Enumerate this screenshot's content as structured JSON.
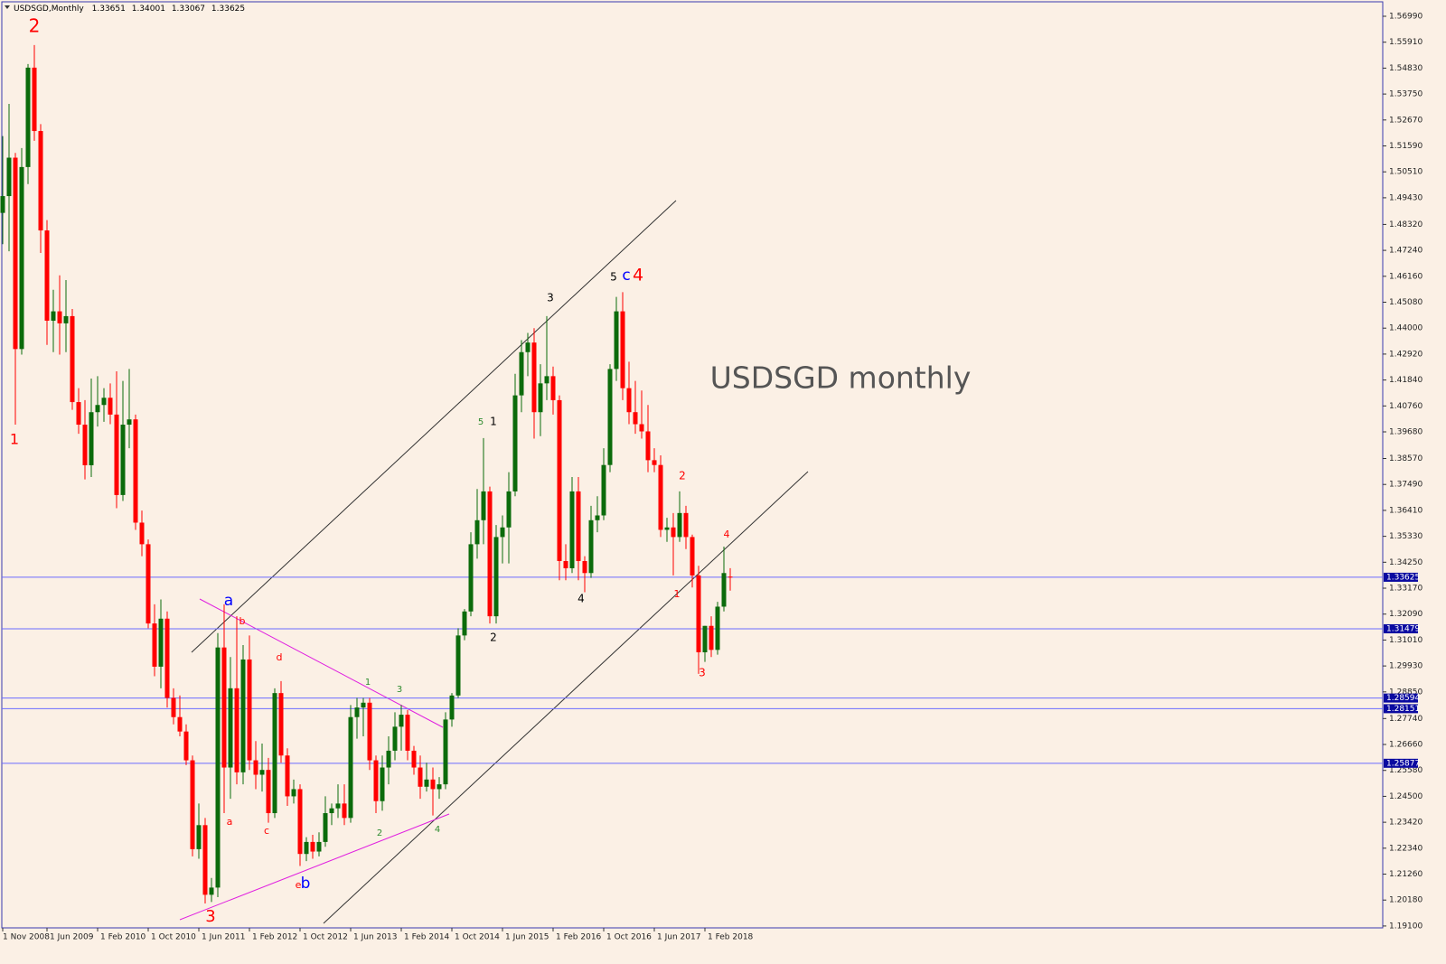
{
  "chart_data": {
    "type": "candlestick",
    "title": "USDSGD,Monthly",
    "up_color": "#0b6b0b",
    "down_color": "#ff0000",
    "hline_color": "#6b6bff",
    "hline_label_color": "#0a0aa0",
    "grid": false,
    "categories": [
      "1 Nov 2008",
      null,
      null,
      null,
      null,
      null,
      null,
      "1 Jun 2009",
      null,
      null,
      null,
      null,
      null,
      null,
      null,
      "1 Feb 2010",
      null,
      null,
      null,
      null,
      null,
      null,
      null,
      "1 Oct 2010",
      null,
      null,
      null,
      null,
      null,
      null,
      null,
      "1 Jun 2011",
      null,
      null,
      null,
      null,
      null,
      null,
      null,
      "1 Feb 2012",
      null,
      null,
      null,
      null,
      null,
      null,
      null,
      "1 Oct 2012",
      null,
      null,
      null,
      null,
      null,
      null,
      null,
      "1 Jun 2013",
      null,
      null,
      null,
      null,
      null,
      null,
      null,
      "1 Feb 2014",
      null,
      null,
      null,
      null,
      null,
      null,
      null,
      "1 Oct 2014",
      null,
      null,
      null,
      null,
      null,
      null,
      null,
      "1 Jun 2015",
      null,
      null,
      null,
      null,
      null,
      null,
      null,
      "1 Feb 2016",
      null,
      null,
      null,
      null,
      null,
      null,
      null,
      "1 Oct 2016",
      null,
      null,
      null,
      null,
      null,
      null,
      null,
      "1 Jun 2017",
      null,
      null,
      null,
      null,
      null,
      null,
      null,
      "1 Feb 2018",
      null,
      null,
      null,
      null
    ],
    "open": [
      1.488,
      1.495,
      1.511,
      1.4313,
      1.5071,
      1.5485,
      1.5221,
      1.4807,
      1.4431,
      1.447,
      1.442,
      1.445,
      1.4092,
      1.3998,
      1.3829,
      1.405,
      1.408,
      1.411,
      1.404,
      1.3705,
      1.3998,
      1.402,
      1.359,
      1.35,
      1.317,
      1.299,
      1.319,
      1.286,
      1.278,
      1.272,
      1.26,
      1.223,
      1.233,
      1.204,
      1.207,
      1.307,
      1.257,
      1.29,
      1.255,
      1.302,
      1.26,
      1.254,
      1.256,
      1.238,
      1.288,
      1.262,
      1.245,
      1.248,
      1.221,
      1.226,
      1.222,
      1.226,
      1.238,
      1.24,
      1.242,
      1.236,
      1.278,
      1.282,
      1.284,
      1.26,
      1.243,
      1.257,
      1.264,
      1.274,
      1.279,
      1.264,
      1.257,
      1.249,
      1.252,
      1.248,
      1.25,
      1.277,
      1.287,
      1.312,
      1.322,
      1.35,
      1.36,
      1.372,
      1.32,
      1.353,
      1.357,
      1.372,
      1.412,
      1.43,
      1.434,
      1.405,
      1.417,
      1.42,
      1.41,
      1.343,
      1.34,
      1.372,
      1.343,
      1.338,
      1.36,
      1.362,
      1.383,
      1.423,
      1.447,
      1.415,
      1.405,
      1.4,
      1.397,
      1.385,
      1.383,
      1.356,
      1.357,
      1.353,
      1.363,
      1.353,
      1.337,
      1.305,
      1.316,
      1.306,
      1.324,
      1.33651
    ],
    "high": [
      1.52,
      1.5334,
      1.513,
      1.515,
      1.55,
      1.5579,
      1.525,
      1.485,
      1.456,
      1.462,
      1.46,
      1.448,
      1.415,
      1.41,
      1.419,
      1.42,
      1.415,
      1.417,
      1.422,
      1.418,
      1.423,
      1.404,
      1.364,
      1.352,
      1.325,
      1.327,
      1.322,
      1.29,
      1.287,
      1.275,
      1.262,
      1.242,
      1.236,
      1.211,
      1.313,
      1.325,
      1.303,
      1.32,
      1.308,
      1.312,
      1.268,
      1.267,
      1.261,
      1.29,
      1.293,
      1.265,
      1.252,
      1.25,
      1.228,
      1.229,
      1.23,
      1.245,
      1.242,
      1.25,
      1.25,
      1.283,
      1.286,
      1.286,
      1.286,
      1.262,
      1.262,
      1.27,
      1.28,
      1.283,
      1.281,
      1.266,
      1.262,
      1.259,
      1.257,
      1.253,
      1.28,
      1.288,
      1.315,
      1.323,
      1.355,
      1.373,
      1.3942,
      1.374,
      1.358,
      1.362,
      1.38,
      1.421,
      1.435,
      1.438,
      1.44,
      1.425,
      1.445,
      1.424,
      1.412,
      1.35,
      1.378,
      1.378,
      1.345,
      1.366,
      1.37,
      1.39,
      1.425,
      1.453,
      1.455,
      1.426,
      1.418,
      1.414,
      1.408,
      1.39,
      1.387,
      1.361,
      1.363,
      1.372,
      1.366,
      1.354,
      1.341,
      1.316,
      1.32,
      1.326,
      1.349,
      1.34001
    ],
    "low": [
      1.475,
      1.472,
      1.3998,
      1.429,
      1.5,
      1.518,
      1.4713,
      1.433,
      1.43,
      1.429,
      1.43,
      1.406,
      1.396,
      1.377,
      1.378,
      1.399,
      1.401,
      1.4,
      1.365,
      1.368,
      1.39,
      1.356,
      1.345,
      1.315,
      1.295,
      1.29,
      1.282,
      1.275,
      1.27,
      1.258,
      1.22,
      1.219,
      1.2004,
      1.201,
      1.203,
      1.238,
      1.244,
      1.25,
      1.25,
      1.256,
      1.248,
      1.247,
      1.234,
      1.236,
      1.259,
      1.241,
      1.242,
      1.216,
      1.218,
      1.219,
      1.22,
      1.224,
      1.233,
      1.236,
      1.233,
      1.234,
      1.269,
      1.27,
      1.256,
      1.238,
      1.239,
      1.25,
      1.26,
      1.264,
      1.26,
      1.254,
      1.244,
      1.247,
      1.237,
      1.244,
      1.248,
      1.274,
      1.286,
      1.31,
      1.32,
      1.344,
      1.35,
      1.317,
      1.317,
      1.342,
      1.342,
      1.37,
      1.405,
      1.42,
      1.394,
      1.395,
      1.41,
      1.404,
      1.335,
      1.335,
      1.338,
      1.335,
      1.33,
      1.336,
      1.355,
      1.36,
      1.38,
      1.418,
      1.41,
      1.4,
      1.396,
      1.394,
      1.38,
      1.38,
      1.353,
      1.351,
      1.337,
      1.351,
      1.348,
      1.332,
      1.296,
      1.301,
      1.303,
      1.304,
      1.322,
      1.33067
    ],
    "close": [
      1.495,
      1.511,
      1.4313,
      1.5071,
      1.5485,
      1.5221,
      1.4807,
      1.4431,
      1.447,
      1.442,
      1.445,
      1.4092,
      1.3998,
      1.3829,
      1.405,
      1.408,
      1.411,
      1.404,
      1.3705,
      1.3998,
      1.402,
      1.359,
      1.35,
      1.317,
      1.299,
      1.319,
      1.286,
      1.278,
      1.272,
      1.26,
      1.223,
      1.233,
      1.204,
      1.207,
      1.307,
      1.257,
      1.29,
      1.255,
      1.302,
      1.26,
      1.254,
      1.256,
      1.238,
      1.288,
      1.262,
      1.245,
      1.248,
      1.221,
      1.226,
      1.222,
      1.226,
      1.238,
      1.24,
      1.242,
      1.236,
      1.278,
      1.282,
      1.284,
      1.26,
      1.243,
      1.257,
      1.264,
      1.274,
      1.279,
      1.264,
      1.257,
      1.249,
      1.252,
      1.248,
      1.25,
      1.277,
      1.287,
      1.312,
      1.322,
      1.35,
      1.36,
      1.372,
      1.32,
      1.353,
      1.357,
      1.372,
      1.412,
      1.43,
      1.434,
      1.405,
      1.417,
      1.42,
      1.41,
      1.343,
      1.34,
      1.372,
      1.343,
      1.338,
      1.36,
      1.362,
      1.383,
      1.423,
      1.447,
      1.415,
      1.405,
      1.4,
      1.397,
      1.385,
      1.383,
      1.356,
      1.357,
      1.353,
      1.363,
      1.353,
      1.337,
      1.305,
      1.316,
      1.306,
      1.324,
      1.338,
      1.33625
    ],
    "ylim": [
      1.19022,
      1.57592
    ],
    "yticks": [
      {
        "value": 1.5699,
        "label": "1.56990"
      },
      {
        "value": 1.5591,
        "label": "1.55910"
      },
      {
        "value": 1.5483,
        "label": "1.54830"
      },
      {
        "value": 1.5375,
        "label": "1.53750"
      },
      {
        "value": 1.5267,
        "label": "1.52670"
      },
      {
        "value": 1.5159,
        "label": "1.51590"
      },
      {
        "value": 1.5051,
        "label": "1.50510"
      },
      {
        "value": 1.4943,
        "label": "1.49430"
      },
      {
        "value": 1.4832,
        "label": "1.48320"
      },
      {
        "value": 1.4724,
        "label": "1.47240"
      },
      {
        "value": 1.4616,
        "label": "1.46160"
      },
      {
        "value": 1.4508,
        "label": "1.45080"
      },
      {
        "value": 1.44,
        "label": "1.44000"
      },
      {
        "value": 1.4292,
        "label": "1.42920"
      },
      {
        "value": 1.4184,
        "label": "1.41840"
      },
      {
        "value": 1.4076,
        "label": "1.40760"
      },
      {
        "value": 1.3968,
        "label": "1.39680"
      },
      {
        "value": 1.3857,
        "label": "1.38570"
      },
      {
        "value": 1.3749,
        "label": "1.37490"
      },
      {
        "value": 1.3641,
        "label": "1.36410"
      },
      {
        "value": 1.3533,
        "label": "1.35330"
      },
      {
        "value": 1.3425,
        "label": "1.34250"
      },
      {
        "value": 1.3317,
        "label": "1.33170"
      },
      {
        "value": 1.3209,
        "label": "1.32090"
      },
      {
        "value": 1.3101,
        "label": "1.31010"
      },
      {
        "value": 1.2993,
        "label": "1.29930"
      },
      {
        "value": 1.2885,
        "label": "1.28850"
      },
      {
        "value": 1.2774,
        "label": "1.27740"
      },
      {
        "value": 1.2666,
        "label": "1.26660"
      },
      {
        "value": 1.2558,
        "label": "1.25580"
      },
      {
        "value": 1.245,
        "label": "1.24500"
      },
      {
        "value": 1.2342,
        "label": "1.23420"
      },
      {
        "value": 1.2234,
        "label": "1.22340"
      },
      {
        "value": 1.2126,
        "label": "1.21260"
      },
      {
        "value": 1.2018,
        "label": "1.20180"
      },
      {
        "value": 1.191,
        "label": "1.19100"
      }
    ],
    "hlines": [
      1.33625,
      1.31479,
      1.28594,
      1.28151,
      1.25877
    ],
    "annotations": [
      {
        "text": "2",
        "color": "#ff0000"
      },
      {
        "text": "1",
        "color": "#ff0000"
      },
      {
        "text": "3",
        "color": "#ff0000"
      },
      {
        "text": "a",
        "color": "#0000ff"
      },
      {
        "text": "b",
        "color": "#ff0000"
      },
      {
        "text": "d",
        "color": "#ff0000"
      },
      {
        "text": "a",
        "color": "#ff0000"
      },
      {
        "text": "c",
        "color": "#ff0000"
      },
      {
        "text": "e",
        "color": "#ff0000"
      },
      {
        "text": "b",
        "color": "#0000ff"
      },
      {
        "text": "1",
        "color": "#2e8b2e"
      },
      {
        "text": "3",
        "color": "#2e8b2e"
      },
      {
        "text": "2",
        "color": "#2e8b2e"
      },
      {
        "text": "4",
        "color": "#2e8b2e"
      },
      {
        "text": "5",
        "color": "#2e8b2e"
      },
      {
        "text": "1",
        "color": "#000000"
      },
      {
        "text": "2",
        "color": "#000000"
      },
      {
        "text": "3",
        "color": "#000000"
      },
      {
        "text": "4",
        "color": "#000000"
      },
      {
        "text": "5",
        "color": "#000000"
      },
      {
        "text": "c",
        "color": "#0000ff"
      },
      {
        "text": "4",
        "color": "#ff0000"
      },
      {
        "text": "2",
        "color": "#ff0000"
      },
      {
        "text": "1",
        "color": "#ff0000"
      },
      {
        "text": "3",
        "color": "#ff0000"
      },
      {
        "text": "4",
        "color": "#ff0000"
      },
      {
        "text": "USDSGD monthly",
        "color": "#555555"
      }
    ]
  }
}
